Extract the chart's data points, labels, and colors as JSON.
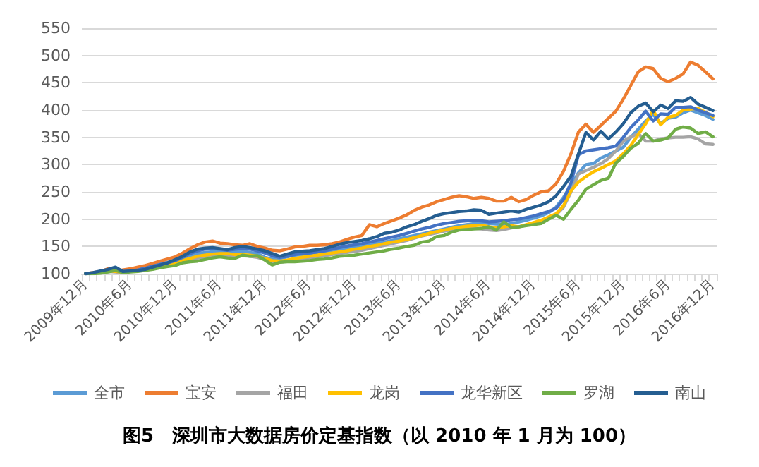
{
  "chart_data": {
    "type": "line",
    "title": "图5　深圳市大数据房价定基指数（以 2010 年 1 月为 100）",
    "categories": [
      "2009年12月",
      null,
      null,
      null,
      null,
      null,
      "2010年6月",
      null,
      null,
      null,
      null,
      null,
      "2010年12月",
      null,
      null,
      null,
      null,
      null,
      "2011年6月",
      null,
      null,
      null,
      null,
      null,
      "2011年12月",
      null,
      null,
      null,
      null,
      null,
      "2012年6月",
      null,
      null,
      null,
      null,
      null,
      "2012年12月",
      null,
      null,
      null,
      null,
      null,
      "2013年6月",
      null,
      null,
      null,
      null,
      null,
      "2013年12月",
      null,
      null,
      null,
      null,
      null,
      "2014年6月",
      null,
      null,
      null,
      null,
      null,
      "2014年12月",
      null,
      null,
      null,
      null,
      null,
      "2015年6月",
      null,
      null,
      null,
      null,
      null,
      "2015年12月",
      null,
      null,
      null,
      null,
      null,
      "2016年6月",
      null,
      null,
      null,
      null,
      null,
      "2016年12月"
    ],
    "series": [
      {
        "name": "全市",
        "color": "#5b9bd5",
        "values": [
          100,
          101,
          103,
          108,
          104,
          105,
          107,
          109,
          112,
          116,
          119,
          121,
          123,
          128,
          133,
          137,
          139,
          140,
          141,
          141,
          140,
          141,
          139,
          137,
          130,
          127,
          128,
          131,
          134,
          135,
          137,
          139,
          141,
          143,
          145,
          147,
          149,
          151,
          153,
          156,
          158,
          161,
          164,
          167,
          170,
          173,
          176,
          179,
          182,
          185,
          188,
          190,
          192,
          193,
          192,
          191,
          190,
          192,
          195,
          198,
          202,
          206,
          212,
          222,
          240,
          262,
          285,
          300,
          302,
          312,
          318,
          325,
          332,
          350,
          365,
          380,
          392,
          375,
          385,
          387,
          395,
          400,
          395,
          390,
          383
        ]
      },
      {
        "name": "宝安",
        "color": "#ed7d31",
        "values": [
          100,
          102,
          104,
          109,
          105,
          107,
          109,
          112,
          115,
          119,
          123,
          127,
          131,
          138,
          146,
          153,
          158,
          160,
          156,
          155,
          153,
          152,
          155,
          150,
          147,
          143,
          142,
          145,
          149,
          150,
          152,
          152,
          153,
          155,
          158,
          163,
          167,
          170,
          190,
          186,
          192,
          197,
          202,
          208,
          216,
          222,
          226,
          232,
          236,
          240,
          243,
          241,
          238,
          240,
          238,
          233,
          233,
          240,
          232,
          236,
          244,
          250,
          252,
          265,
          288,
          320,
          360,
          374,
          359,
          372,
          385,
          398,
          420,
          445,
          470,
          479,
          476,
          458,
          452,
          458,
          466,
          488,
          482,
          470,
          457
        ]
      },
      {
        "name": "福田",
        "color": "#a5a5a5",
        "values": [
          100,
          101,
          102,
          104,
          103,
          102,
          104,
          105,
          107,
          110,
          113,
          116,
          119,
          122,
          126,
          129,
          131,
          132,
          133,
          132,
          131,
          133,
          132,
          130,
          126,
          122,
          121,
          123,
          125,
          127,
          129,
          131,
          133,
          135,
          137,
          139,
          141,
          143,
          146,
          149,
          152,
          155,
          158,
          161,
          165,
          169,
          172,
          175,
          178,
          180,
          182,
          183,
          183,
          182,
          180,
          179,
          181,
          184,
          186,
          189,
          192,
          196,
          201,
          208,
          222,
          250,
          283,
          289,
          295,
          302,
          311,
          325,
          343,
          351,
          357,
          343,
          343,
          347,
          349,
          350,
          350,
          351,
          347,
          338,
          337
        ]
      },
      {
        "name": "龙岗",
        "color": "#ffc000",
        "values": [
          null,
          null,
          102,
          105,
          104,
          103,
          105,
          106,
          108,
          111,
          114,
          117,
          120,
          124,
          128,
          132,
          134,
          136,
          137,
          137,
          135,
          135,
          134,
          132,
          128,
          124,
          123,
          125,
          128,
          130,
          132,
          134,
          136,
          138,
          140,
          142,
          145,
          147,
          150,
          152,
          155,
          158,
          160,
          163,
          166,
          170,
          174,
          177,
          180,
          183,
          185,
          187,
          188,
          189,
          186,
          184,
          186,
          188,
          186,
          190,
          194,
          198,
          204,
          210,
          225,
          252,
          268,
          278,
          287,
          293,
          300,
          307,
          320,
          335,
          355,
          375,
          400,
          373,
          387,
          390,
          400,
          402,
          403,
          396,
          388
        ]
      },
      {
        "name": "龙华新区",
        "color": "#4472c4",
        "values": [
          100,
          101,
          104,
          107,
          108,
          104,
          105,
          107,
          110,
          114,
          117,
          120,
          124,
          130,
          137,
          142,
          145,
          146,
          145,
          143,
          145,
          146,
          145,
          142,
          138,
          133,
          130,
          132,
          135,
          137,
          138,
          140,
          142,
          145,
          148,
          151,
          153,
          155,
          158,
          161,
          164,
          167,
          170,
          174,
          178,
          182,
          185,
          189,
          192,
          194,
          196,
          197,
          198,
          197,
          195,
          196,
          197,
          199,
          200,
          203,
          206,
          210,
          214,
          220,
          236,
          267,
          318,
          325,
          327,
          329,
          331,
          334,
          350,
          368,
          382,
          398,
          380,
          393,
          392,
          405,
          405,
          406,
          400,
          395,
          390
        ]
      },
      {
        "name": "罗湖",
        "color": "#70ad47",
        "values": [
          100,
          100,
          101,
          103,
          106,
          102,
          103,
          104,
          106,
          108,
          111,
          113,
          115,
          120,
          122,
          123,
          126,
          129,
          131,
          129,
          128,
          134,
          132,
          133,
          125,
          116,
          121,
          122,
          122,
          123,
          124,
          126,
          127,
          129,
          132,
          133,
          134,
          136,
          138,
          140,
          142,
          145,
          147,
          150,
          152,
          158,
          160,
          168,
          170,
          176,
          180,
          181,
          182,
          183,
          186,
          180,
          195,
          185,
          186,
          188,
          190,
          192,
          200,
          207,
          200,
          218,
          235,
          255,
          263,
          271,
          275,
          303,
          315,
          330,
          339,
          357,
          343,
          345,
          349,
          365,
          369,
          367,
          357,
          360,
          351
        ]
      },
      {
        "name": "南山",
        "color": "#255e91",
        "values": [
          100,
          102,
          105,
          108,
          112,
          104,
          105,
          106,
          108,
          112,
          116,
          120,
          126,
          132,
          140,
          145,
          147,
          148,
          146,
          144,
          148,
          150,
          148,
          145,
          142,
          137,
          132,
          136,
          140,
          141,
          142,
          144,
          146,
          150,
          154,
          157,
          159,
          161,
          164,
          168,
          174,
          176,
          180,
          186,
          190,
          196,
          201,
          207,
          210,
          212,
          214,
          215,
          217,
          216,
          209,
          211,
          213,
          215,
          213,
          218,
          222,
          226,
          232,
          243,
          260,
          279,
          320,
          359,
          345,
          361,
          347,
          360,
          375,
          395,
          407,
          413,
          397,
          409,
          403,
          417,
          416,
          423,
          411,
          405,
          399
        ]
      }
    ],
    "ylim": [
      100,
      550
    ],
    "yticks": [
      100,
      150,
      200,
      250,
      300,
      350,
      400,
      450,
      500,
      550
    ],
    "grid": "y",
    "legend": "bottom",
    "marker": "none",
    "line_style": "solid"
  }
}
